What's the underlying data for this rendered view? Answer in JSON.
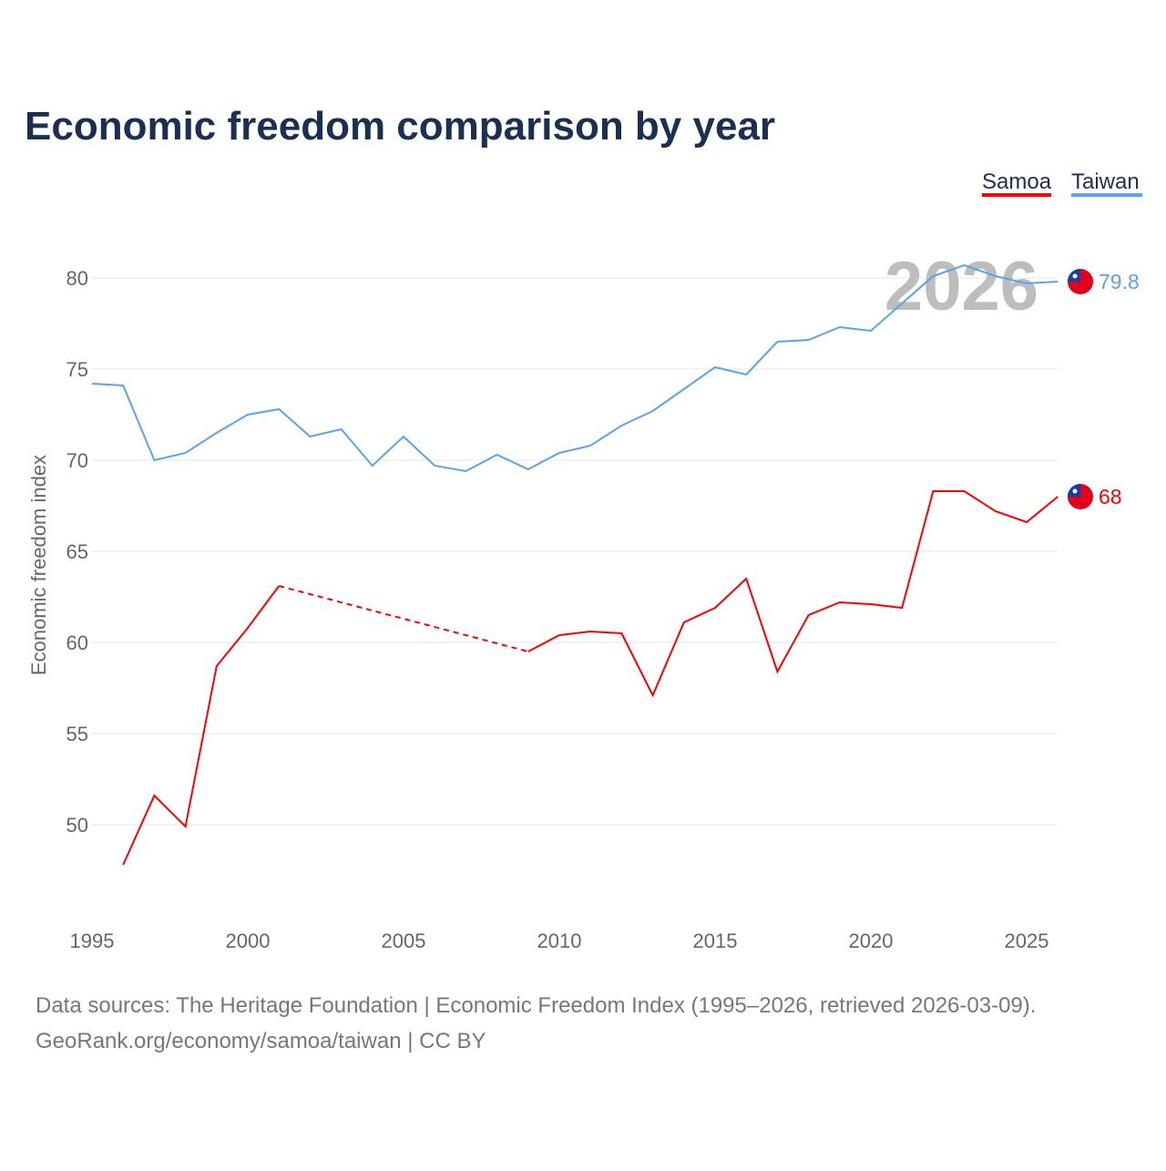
{
  "chart_data": {
    "type": "line",
    "title": "Economic freedom comparison by year",
    "ylabel": "Economic freedom index",
    "xlabel": "",
    "ylim": [
      45,
      84
    ],
    "xlim": [
      1995,
      2026
    ],
    "y_ticks": [
      "50",
      "55",
      "60",
      "65",
      "70",
      "75",
      "80"
    ],
    "x_ticks": [
      "1995",
      "2000",
      "2005",
      "2010",
      "2015",
      "2020",
      "2025"
    ],
    "grid": true,
    "legend_placement": "top-right",
    "watermark_year": "2026",
    "x": [
      1995,
      1996,
      1997,
      1998,
      1999,
      2000,
      2001,
      2002,
      2003,
      2004,
      2005,
      2006,
      2007,
      2008,
      2009,
      2010,
      2011,
      2012,
      2013,
      2014,
      2015,
      2016,
      2017,
      2018,
      2019,
      2020,
      2021,
      2022,
      2023,
      2024,
      2025,
      2026
    ],
    "series": [
      {
        "name": "Samoa",
        "color": "#ff0000",
        "end_label": "68",
        "values": [
          null,
          47.8,
          51.6,
          49.9,
          58.7,
          60.8,
          63.1,
          null,
          null,
          null,
          null,
          null,
          null,
          null,
          59.5,
          60.4,
          60.6,
          60.5,
          57.1,
          61.1,
          61.9,
          63.5,
          58.4,
          61.5,
          62.2,
          62.1,
          61.9,
          68.3,
          68.3,
          67.2,
          66.6,
          68
        ]
      },
      {
        "name": "Taiwan",
        "color": "#5ba3ea",
        "end_label": "79.8",
        "values": [
          74.2,
          74.1,
          70.0,
          70.4,
          71.5,
          72.5,
          72.8,
          71.3,
          71.7,
          69.7,
          71.3,
          69.7,
          69.4,
          70.3,
          69.5,
          70.4,
          70.8,
          71.9,
          72.7,
          73.9,
          75.1,
          74.7,
          76.5,
          76.6,
          77.3,
          77.1,
          78.6,
          80.1,
          80.7,
          80.1,
          79.7,
          79.8
        ]
      }
    ]
  },
  "footer": {
    "line1": "Data sources: The Heritage Foundation | Economic Freedom Index (1995–2026, retrieved 2026-03-09).",
    "line2": "GeoRank.org/economy/samoa/taiwan | CC BY"
  }
}
